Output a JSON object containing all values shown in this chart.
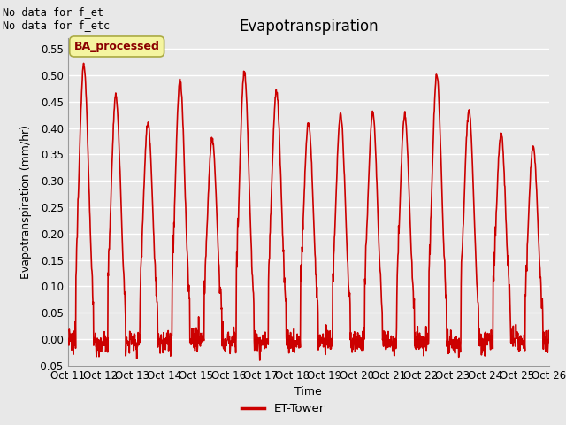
{
  "title": "Evapotranspiration",
  "ylabel": "Evapotranspiration (mm/hr)",
  "xlabel": "Time",
  "ylim": [
    -0.05,
    0.57
  ],
  "yticks": [
    -0.05,
    0.0,
    0.05,
    0.1,
    0.15,
    0.2,
    0.25,
    0.3,
    0.35,
    0.4,
    0.45,
    0.5,
    0.55
  ],
  "line_color": "#cc0000",
  "line_width": 1.2,
  "fig_bg_color": "#e8e8e8",
  "plot_bg_color": "#e8e8e8",
  "grid_color": "#ffffff",
  "title_fontsize": 12,
  "axis_label_fontsize": 9,
  "tick_fontsize": 8.5,
  "annotation_text": "No data for f_et\nNo data for f_etc",
  "legend_label": "ET-Tower",
  "legend_label2": "BA_processed",
  "xtick_labels": [
    "Oct 11",
    "Oct 12",
    "Oct 13",
    "Oct 14",
    "Oct 15",
    "Oct 16",
    "Oct 17",
    "Oct 18",
    "Oct 19",
    "Oct 20",
    "Oct 21",
    "Oct 22",
    "Oct 23",
    "Oct 24",
    "Oct 25",
    "Oct 26"
  ],
  "day_peaks": [
    0.52,
    0.46,
    0.41,
    0.49,
    0.38,
    0.505,
    0.47,
    0.41,
    0.425,
    0.43,
    0.425,
    0.5,
    0.435,
    0.39,
    0.365
  ],
  "figsize": [
    6.4,
    4.8
  ],
  "dpi": 100
}
